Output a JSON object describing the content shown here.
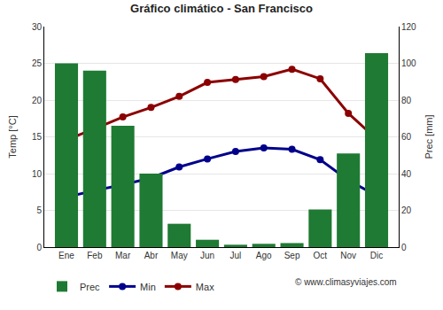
{
  "chart_data": {
    "type": "bar",
    "title": "Gráfico climático - San Francisco",
    "y_label": "Temp [°C]",
    "y2_label": "Prec [mm]",
    "annotations": [
      "© www.climasyviajes.com"
    ],
    "categories": [
      "Ene",
      "Feb",
      "Mar",
      "Abr",
      "May",
      "Jun",
      "Jul",
      "Ago",
      "Sep",
      "Oct",
      "Nov",
      "Dic"
    ],
    "series": [
      {
        "name": "Prec",
        "type": "bar",
        "axis": "y2",
        "color": "#1f7a33",
        "values": [
          100,
          96,
          66,
          40,
          12.7,
          4,
          1.3,
          1.8,
          2.2,
          20.5,
          51,
          105.5
        ]
      },
      {
        "name": "Min",
        "type": "line",
        "color": "#00008b",
        "marker": "circle",
        "values": [
          6.8,
          7.7,
          8.5,
          9.4,
          10.9,
          12.0,
          13.0,
          13.5,
          13.3,
          11.9,
          9.1,
          7.0
        ]
      },
      {
        "name": "Max",
        "type": "line",
        "color": "#8b0000",
        "marker": "circle",
        "values": [
          14.6,
          16.1,
          17.7,
          19.0,
          20.5,
          22.4,
          22.8,
          23.2,
          24.2,
          22.9,
          18.2,
          14.7
        ]
      }
    ],
    "ylim": [
      0,
      30
    ],
    "yticks": [
      0,
      5,
      10,
      15,
      20,
      25,
      30
    ],
    "y2lim": [
      0,
      120
    ],
    "y2ticks": [
      0,
      20,
      40,
      60,
      80,
      100,
      120
    ],
    "grid": true,
    "legend": "bottom"
  }
}
